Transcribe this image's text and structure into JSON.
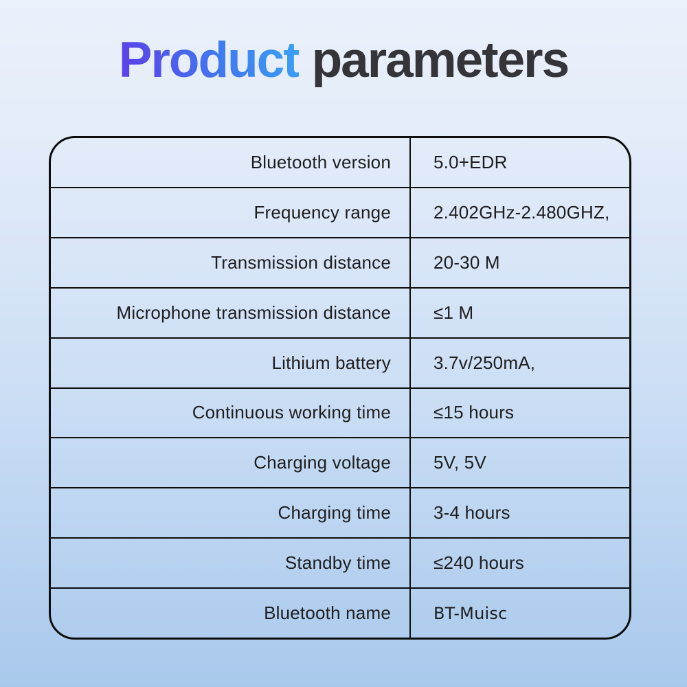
{
  "title": {
    "highlight": "Product",
    "rest": "parameters"
  },
  "colors": {
    "bg-top": "#ebf1fb",
    "bg-bottom": "#a9c9ec",
    "accent-start": "#5a43e8",
    "accent-end": "#3ba0f6",
    "title-dark": "#343439",
    "border": "#0d0d0d",
    "text": "#1e1e20"
  },
  "table": {
    "rows": [
      {
        "label": "Bluetooth version",
        "value": "5.0+EDR"
      },
      {
        "label": "Frequency range",
        "value": "2.402GHz-2.480GHZ,"
      },
      {
        "label": "Transmission distance",
        "value": "20-30 M"
      },
      {
        "label": "Microphone transmission distance",
        "value": "≤1 M"
      },
      {
        "label": "Lithium battery",
        "value": "3.7v/250mA,"
      },
      {
        "label": "Continuous working time",
        "value": "≤15 hours"
      },
      {
        "label": "Charging voltage",
        "value": "5V, 5V"
      },
      {
        "label": "Charging time",
        "value": "3-4 hours"
      },
      {
        "label": "Standby time",
        "value": "≤240 hours"
      },
      {
        "label": "Bluetooth name",
        "value": "BT-Muisc"
      }
    ]
  }
}
